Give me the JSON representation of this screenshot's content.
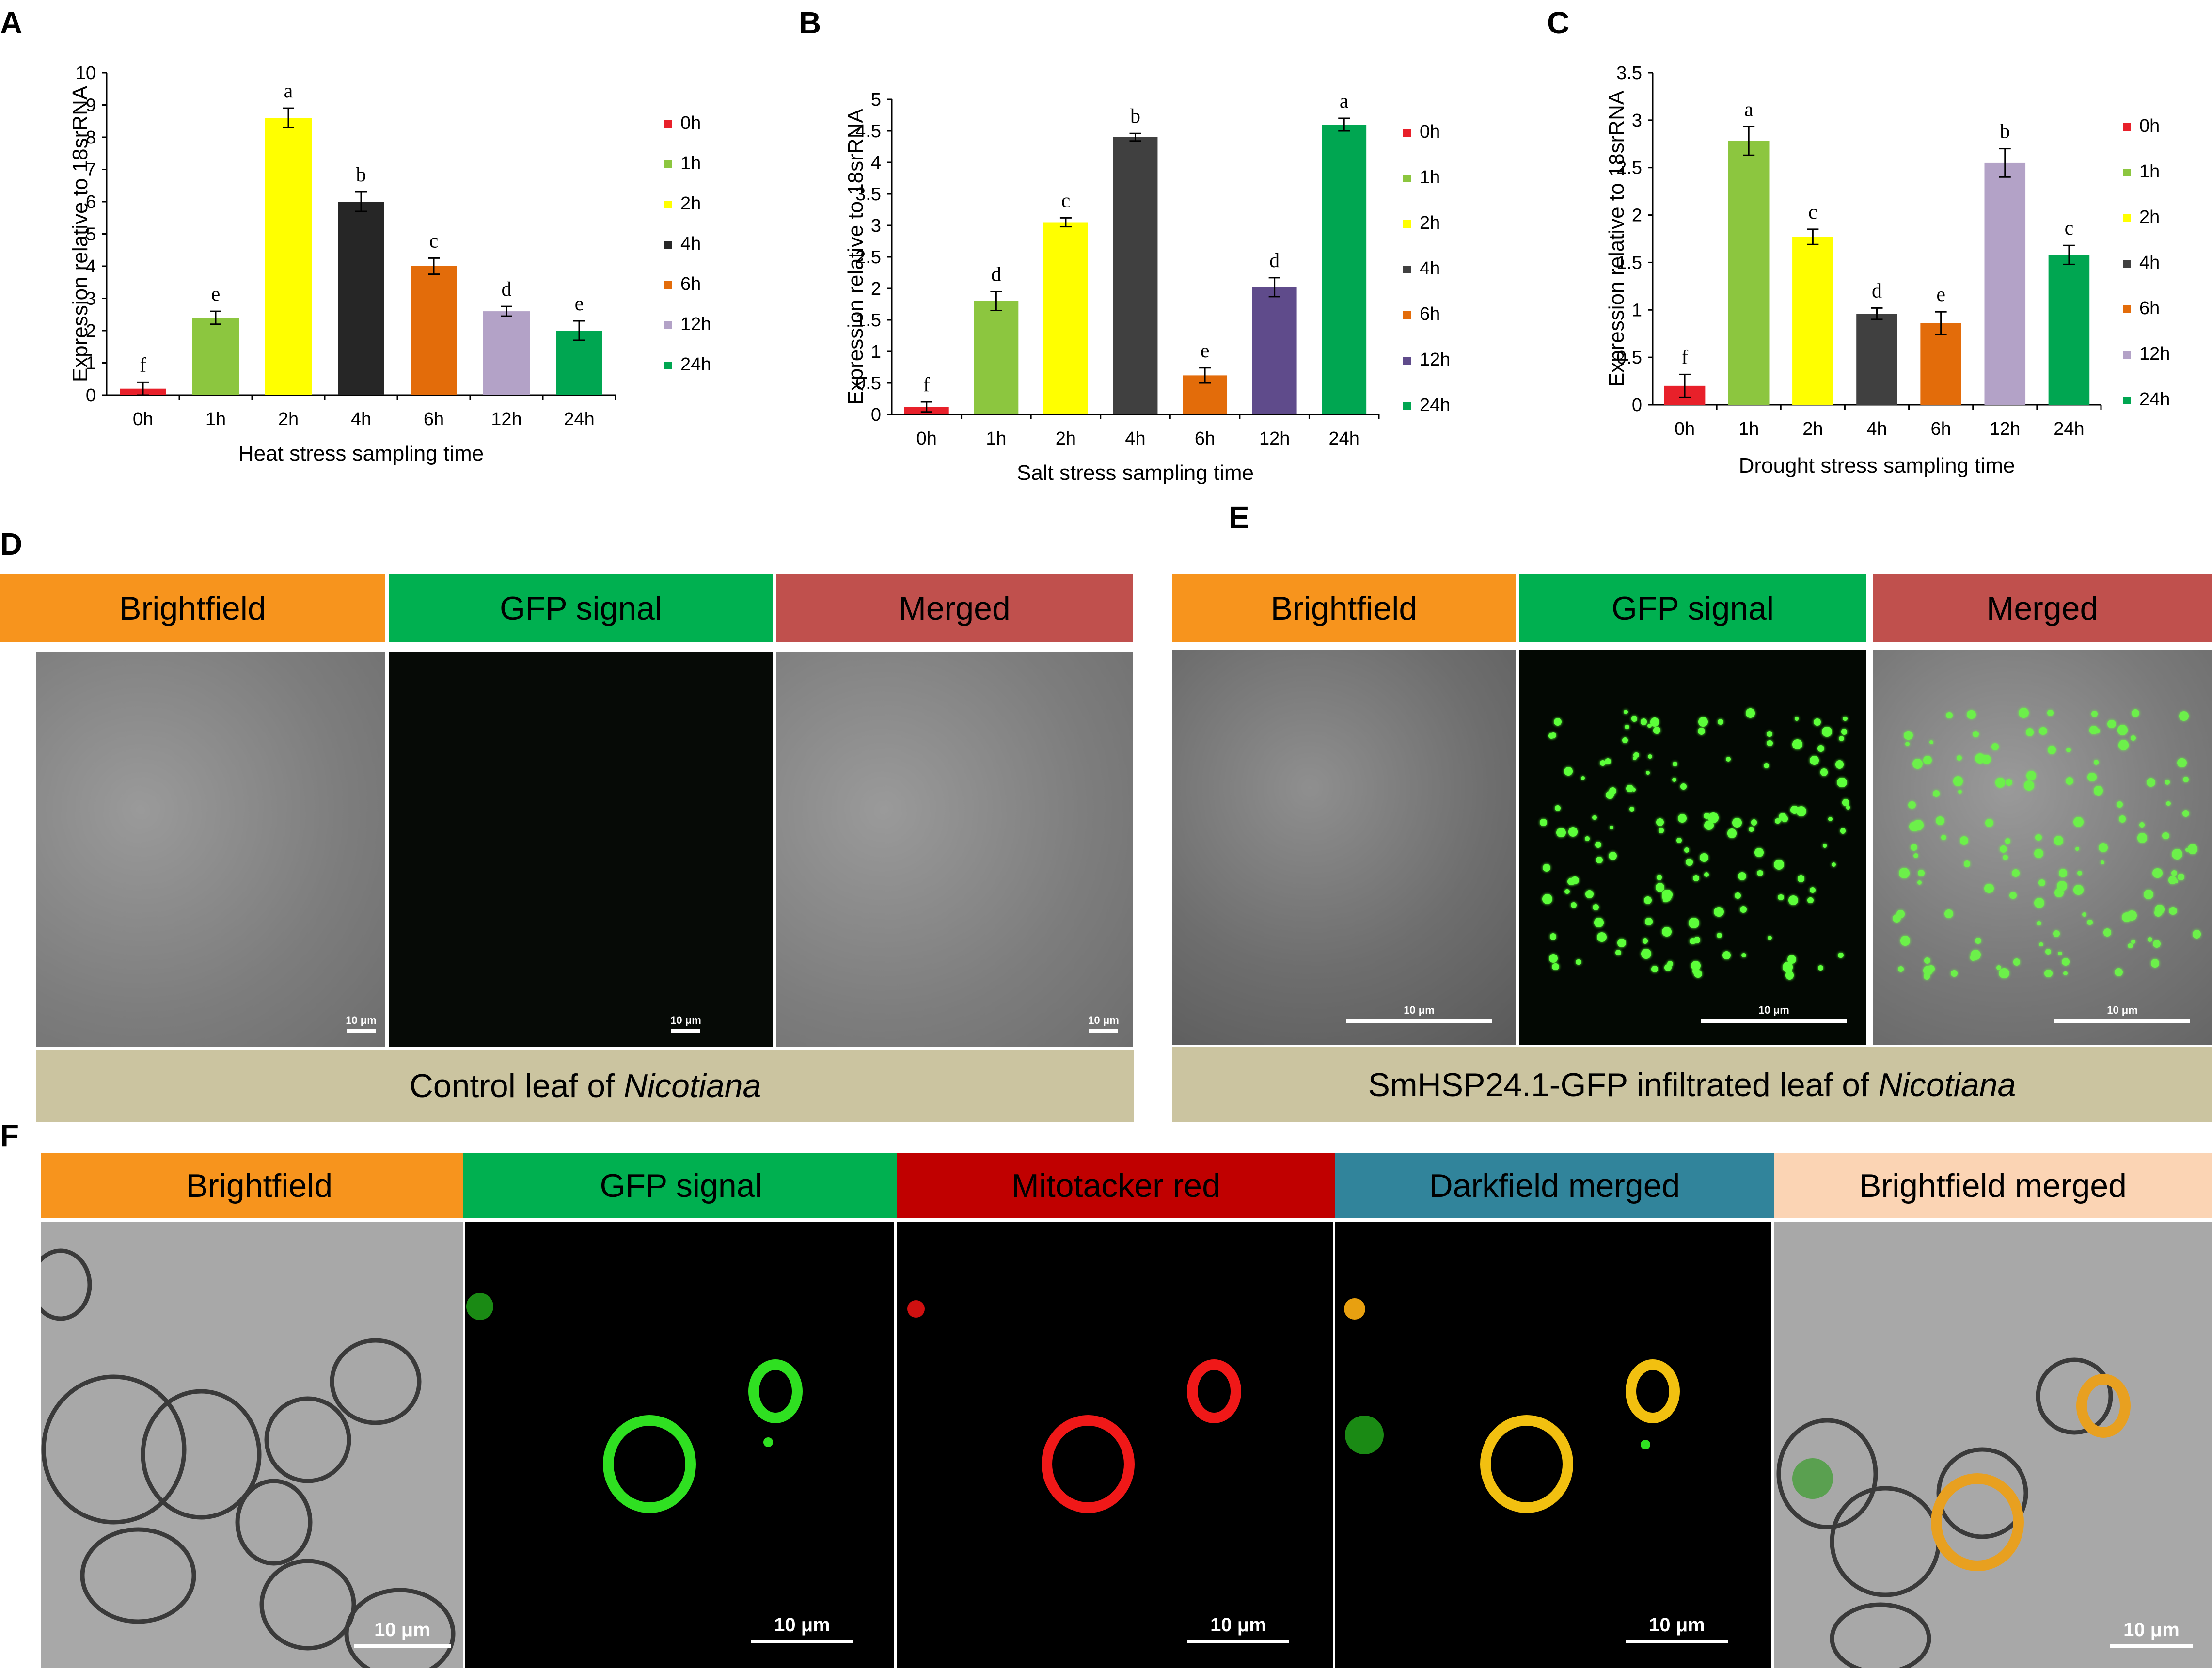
{
  "panel_labels": {
    "A": "A",
    "B": "B",
    "C": "C",
    "D": "D",
    "E": "E",
    "F": "F"
  },
  "chart_data": [
    {
      "type": "bar",
      "categories": [
        "0h",
        "1h",
        "2h",
        "4h",
        "6h",
        "12h",
        "24h"
      ],
      "values": [
        0.2,
        2.4,
        8.6,
        6.0,
        4.0,
        2.6,
        2.0
      ],
      "errors": [
        0.2,
        0.2,
        0.3,
        0.3,
        0.25,
        0.15,
        0.3
      ],
      "significance": [
        "f",
        "e",
        "a",
        "b",
        "c",
        "d",
        "e"
      ],
      "colors": [
        "#e8202a",
        "#8cc63f",
        "#ffff00",
        "#262626",
        "#e36c0a",
        "#b3a2c7",
        "#00a651"
      ],
      "legend": [
        "0h",
        "1h",
        "2h",
        "4h",
        "6h",
        "12h",
        "24h"
      ],
      "xlabel": "Heat stress sampling time",
      "ylabel": "Expression relative to 18srRNA",
      "ylim": [
        0,
        10
      ],
      "yticks": [
        "0",
        "1",
        "2",
        "3",
        "4",
        "5",
        "6",
        "7",
        "8",
        "9",
        "10"
      ]
    },
    {
      "type": "bar",
      "categories": [
        "0h",
        "1h",
        "2h",
        "4h",
        "6h",
        "12h",
        "24h"
      ],
      "values": [
        0.12,
        1.8,
        3.05,
        4.4,
        0.62,
        2.02,
        4.6
      ],
      "errors": [
        0.08,
        0.15,
        0.07,
        0.06,
        0.12,
        0.15,
        0.1
      ],
      "significance": [
        "f",
        "d",
        "c",
        "b",
        "e",
        "d",
        "a"
      ],
      "colors": [
        "#e8202a",
        "#8cc63f",
        "#ffff00",
        "#404040",
        "#e36c0a",
        "#5f4b8b",
        "#00a651"
      ],
      "legend": [
        "0h",
        "1h",
        "2h",
        "4h",
        "6h",
        "12h",
        "24h"
      ],
      "xlabel": "Salt stress sampling time",
      "ylabel": "Expression relative to 18srRNA",
      "ylim": [
        0,
        5
      ],
      "yticks": [
        "0",
        "0.5",
        "1",
        "1.5",
        "2",
        "2.5",
        "3",
        "3.5",
        "4",
        "4.5",
        "5"
      ]
    },
    {
      "type": "bar",
      "categories": [
        "0h",
        "1h",
        "2h",
        "4h",
        "6h",
        "12h",
        "24h"
      ],
      "values": [
        0.2,
        2.78,
        1.77,
        0.96,
        0.86,
        2.55,
        1.58
      ],
      "errors": [
        0.12,
        0.15,
        0.08,
        0.06,
        0.12,
        0.15,
        0.1
      ],
      "significance": [
        "f",
        "a",
        "c",
        "d",
        "e",
        "b",
        "c"
      ],
      "colors": [
        "#e8202a",
        "#8cc63f",
        "#ffff00",
        "#404040",
        "#e36c0a",
        "#b3a2c7",
        "#00a651"
      ],
      "legend": [
        "0h",
        "1h",
        "2h",
        "4h",
        "6h",
        "12h",
        "24h"
      ],
      "xlabel": "Drought stress sampling time",
      "ylabel": "Expression relative to 18srRNA",
      "ylim": [
        0,
        3.5
      ],
      "yticks": [
        "0",
        "0.5",
        "1",
        "1.5",
        "2",
        "2.5",
        "3",
        "3.5"
      ]
    }
  ],
  "panel_d": {
    "headers": [
      "Brightfield",
      "GFP signal",
      "Merged"
    ],
    "header_colors": [
      "#f7941d",
      "#00b050",
      "#c0504d"
    ],
    "scale": "10 μm",
    "caption_prefix": "Control leaf of ",
    "caption_italic": "Nicotiana"
  },
  "panel_e": {
    "headers": [
      "Brightfield",
      "GFP signal",
      "Merged"
    ],
    "header_colors": [
      "#f7941d",
      "#00b050",
      "#c0504d"
    ],
    "scale": "10 μm",
    "caption_prefix": "SmHSP24.1-GFP infiltrated leaf of ",
    "caption_italic": "Nicotiana"
  },
  "panel_f": {
    "headers": [
      "Brightfield",
      "GFP signal",
      "Mitotacker red",
      "Darkfield merged",
      "Brightfield merged"
    ],
    "header_colors": [
      "#f7941d",
      "#00b050",
      "#c00000",
      "#31849b",
      "#fbd4b4"
    ],
    "header_text_colors": [
      "#000000",
      "#000000",
      "#000000",
      "#000000",
      "#000000"
    ],
    "scale": "10 μm"
  }
}
